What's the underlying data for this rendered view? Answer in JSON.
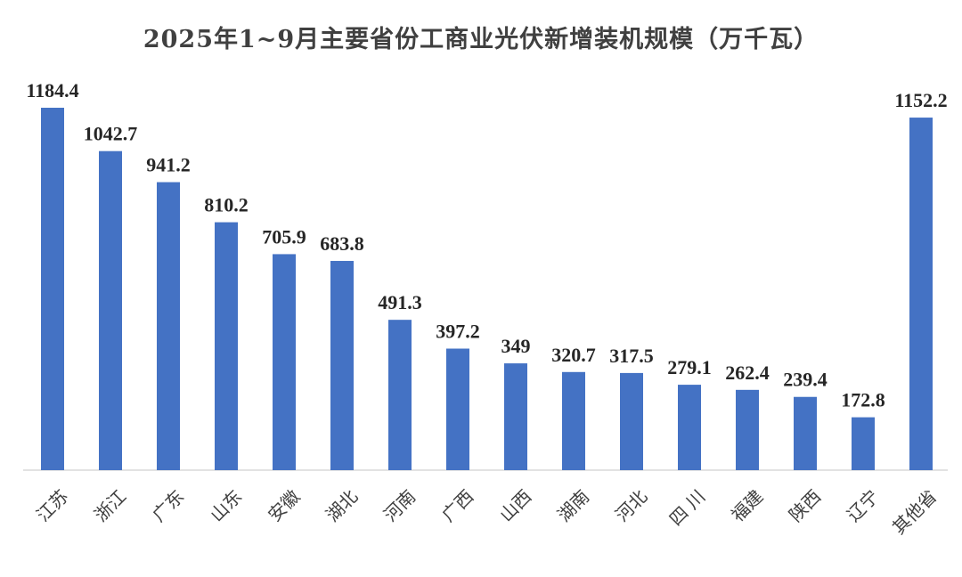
{
  "chart_data": {
    "type": "bar",
    "title": "2025年1~9月主要省份工商业光伏新增装机规模（万千瓦）",
    "xlabel": "",
    "ylabel": "",
    "categories": [
      "江苏",
      "浙江",
      "广东",
      "山东",
      "安徽",
      "湖北",
      "河南",
      "广西",
      "山西",
      "湖南",
      "河北",
      "四 川",
      "福建",
      "陕西",
      "辽宁",
      "其他省"
    ],
    "values": [
      1184.4,
      1042.7,
      941.2,
      810.2,
      705.9,
      683.8,
      491.3,
      397.2,
      349,
      320.7,
      317.5,
      279.1,
      262.4,
      239.4,
      172.8,
      1152.2
    ],
    "value_labels": [
      "1184.4",
      "1042.7",
      "941.2",
      "810.2",
      "705.9",
      "683.8",
      "491.3",
      "397.2",
      "349",
      "320.7",
      "317.5",
      "279.1",
      "262.4",
      "239.4",
      "172.8",
      "1152.2"
    ],
    "ylim": [
      0,
      1184.4
    ],
    "grid": false,
    "legend": "none",
    "bar_color": "#4472C4"
  }
}
